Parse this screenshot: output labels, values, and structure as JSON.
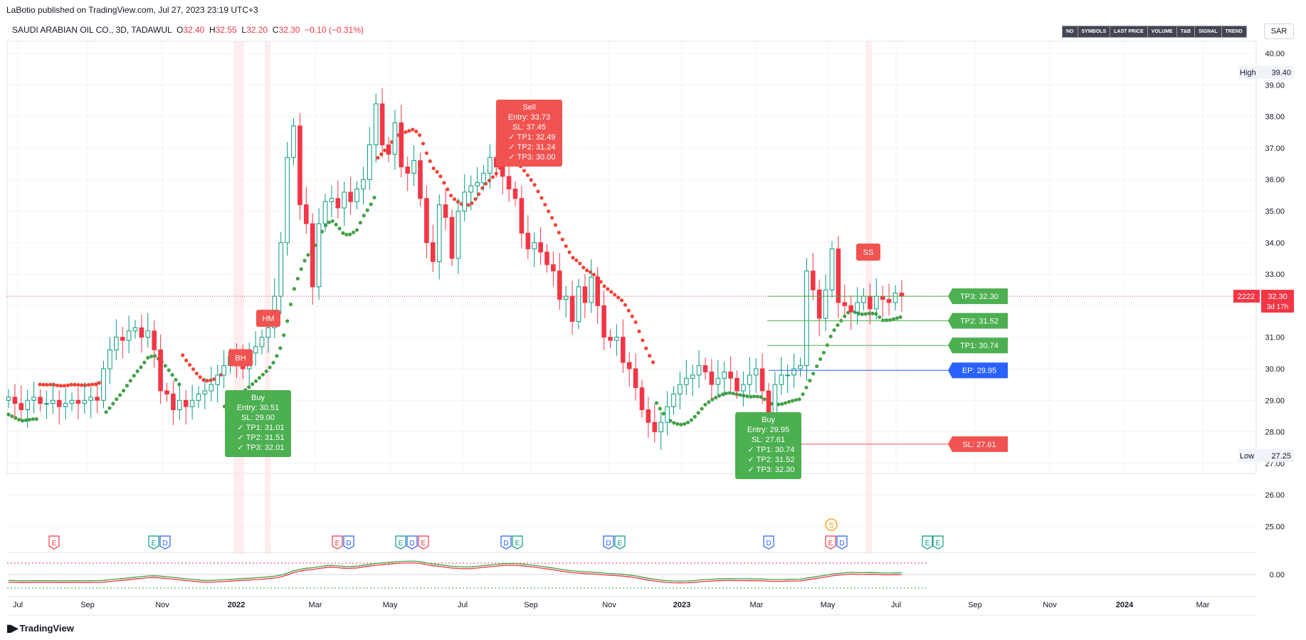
{
  "publisher_line": "LaBotio published on TradingView.com, Jul 27, 2023 23:19 UTC+3",
  "symbol": {
    "name": "SAUDI ARABIAN OIL CO., 3D, TADAWUL",
    "o_label": "O",
    "o": "32.40",
    "h_label": "H",
    "h": "32.55",
    "l_label": "L",
    "l": "32.20",
    "c_label": "C",
    "c": "32.30",
    "change": "−0.10 (−0.31%)"
  },
  "toolbar": [
    "NO",
    "SYMBOLS",
    "LAST PRICE",
    "VOLUME",
    "T&B",
    "SIGNAL",
    "TREND"
  ],
  "currency": "SAR",
  "footer": {
    "brand": "TradingView",
    "icon": "tradingview-logo-icon"
  },
  "colors": {
    "up": "#089981",
    "down": "#f23645",
    "bull_dots": "#43a047",
    "bear_dots": "#f44336",
    "signal_green": "#4caf50",
    "signal_red": "#f05350",
    "ep_blue": "#2962ff",
    "text": "#131722",
    "grid": "#f0f3fa"
  },
  "chart_data": {
    "type": "candlestick",
    "y_axis": {
      "min": 24.5,
      "max": 40.2,
      "ticks": [
        "25.00",
        "26.00",
        "27.00",
        "28.00",
        "29.00",
        "30.00",
        "31.00",
        "32.00",
        "33.00",
        "34.00",
        "35.00",
        "36.00",
        "37.00",
        "38.00",
        "39.00",
        "40.00"
      ]
    },
    "x_axis": {
      "ticks": [
        "Jul",
        "Sep",
        "Nov",
        "2022",
        "Mar",
        "May",
        "Jul",
        "Sep",
        "Nov",
        "2023",
        "Mar",
        "May",
        "Jul",
        "Sep",
        "Nov",
        "2024",
        "Mar"
      ],
      "bold_ticks": [
        "2022",
        "2023",
        "2024"
      ]
    },
    "close_series": [
      29.1,
      28.9,
      28.7,
      29.0,
      29.1,
      28.9,
      28.9,
      29.0,
      28.8,
      28.9,
      29.0,
      28.9,
      29.0,
      29.1,
      29.0,
      30.0,
      30.6,
      31.0,
      30.9,
      31.2,
      31.3,
      31.0,
      31.2,
      30.6,
      29.3,
      29.2,
      28.7,
      29.0,
      28.8,
      29.0,
      29.2,
      29.3,
      29.5,
      29.8,
      30.1,
      30.4,
      30.2,
      30.0,
      30.5,
      30.7,
      31.0,
      31.3,
      32.3,
      34.0,
      36.7,
      37.7,
      35.2,
      34.6,
      32.6,
      34.6,
      35.3,
      35.4,
      35.1,
      35.6,
      35.3,
      35.7,
      36.0,
      37.1,
      38.4,
      37.1,
      36.8,
      37.8,
      36.4,
      36.2,
      36.6,
      35.4,
      34.0,
      33.4,
      35.2,
      34.8,
      33.5,
      35.0,
      35.6,
      35.8,
      35.9,
      36.2,
      36.7,
      36.4,
      36.1,
      35.7,
      35.4,
      34.3,
      33.8,
      34.0,
      33.7,
      33.3,
      33.1,
      32.2,
      32.3,
      31.5,
      32.6,
      32.1,
      32.9,
      32.0,
      31.0,
      30.9,
      31.0,
      30.2,
      30.0,
      29.4,
      28.7,
      28.3,
      28.0,
      28.3,
      28.8,
      29.2,
      29.5,
      29.7,
      29.8,
      30.1,
      29.9,
      29.5,
      29.7,
      29.9,
      29.7,
      29.3,
      29.5,
      29.8,
      30.0,
      29.3,
      28.2,
      29.5,
      29.8,
      29.8,
      30.0,
      30.1,
      33.1,
      32.5,
      31.6,
      32.5,
      33.8,
      32.1,
      32.0,
      31.8,
      32.1,
      32.3,
      31.9,
      32.3,
      32.2,
      32.1,
      32.4,
      32.3
    ],
    "candle_range": {
      "first_x_label": "Jun 2021",
      "last_x_label": "Jul 27, 2023"
    },
    "trend_dots": {
      "bull_segments": [
        [
          0,
          4.5
        ],
        [
          15,
          27
        ],
        [
          34,
          58
        ],
        [
          102,
          146
        ]
      ],
      "bear_segments": [
        [
          4.5,
          15
        ],
        [
          27,
          34
        ],
        [
          58,
          102
        ]
      ]
    },
    "signals": [
      {
        "type": "Buy",
        "label": "Buy",
        "entry_label": "Entry: 30.51",
        "sl_label": "SL: 29.00",
        "tps": [
          "TP1: 31.01",
          "TP2: 31.51",
          "TP3: 32.01"
        ]
      },
      {
        "type": "Sell",
        "label": "Sell",
        "entry_label": "Entry: 33.73",
        "sl_label": "SL: 37.45",
        "tps": [
          "TP1: 32.49",
          "TP2: 31.24",
          "TP3: 30.00"
        ]
      },
      {
        "type": "Buy",
        "label": "Buy",
        "entry_label": "Entry: 29.95",
        "sl_label": "SL: 27.61",
        "tps": [
          "TP1: 30.74",
          "TP2: 31.52",
          "TP3: 32.30"
        ]
      }
    ],
    "markers": [
      {
        "label": "BH",
        "price": 30.35
      },
      {
        "label": "HM",
        "price": 31.6
      },
      {
        "label": "SS",
        "price": 33.7
      }
    ],
    "levels": [
      {
        "label": "TP3: 32.30",
        "price": 32.3,
        "color": "#4caf50"
      },
      {
        "label": "TP2: 31.52",
        "price": 31.52,
        "color": "#4caf50"
      },
      {
        "label": "TP1: 30.74",
        "price": 30.74,
        "color": "#4caf50"
      },
      {
        "label": "EP: 29.95",
        "price": 29.95,
        "color": "#2962ff"
      },
      {
        "label": "SL: 27.61",
        "price": 27.61,
        "color": "#f05350"
      }
    ],
    "price_tags": {
      "high_label": "High",
      "high": "39.40",
      "low_label": "Low",
      "low": "27.25",
      "last_symbol": "2222",
      "last": "32.30",
      "countdown": "3d 17h"
    },
    "events": [
      "E",
      "E",
      "D",
      "E",
      "D",
      "E",
      "D",
      "E",
      "D",
      "E",
      "D",
      "E",
      "D",
      "E",
      "D",
      "E",
      "E"
    ],
    "dividend_marker": "S",
    "oscillator": {
      "zero_label": "0.00"
    }
  }
}
